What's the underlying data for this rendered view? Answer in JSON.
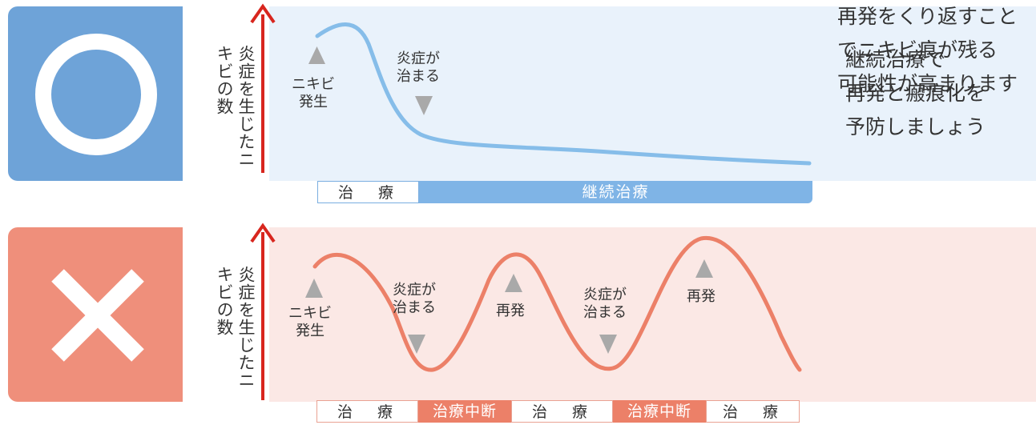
{
  "good": {
    "y_label": "炎症を生じたニキビの数",
    "notes": {
      "onset": [
        "ニキビ",
        "発生"
      ],
      "subside": [
        "炎症が",
        "治まる"
      ]
    },
    "timeline": {
      "treatment": "治　療",
      "continued": "継続治療"
    },
    "message": [
      "継続治療で",
      "再発と瘢痕化を",
      "予防しましょう"
    ],
    "colors": {
      "accent": "#6ea3d8",
      "curve": "#86bde9",
      "background": "#e9f2fb"
    }
  },
  "bad": {
    "y_label": "炎症を生じたニキビの数",
    "notes": {
      "onset": [
        "ニキビ",
        "発生"
      ],
      "subside": [
        "炎症が",
        "治まる"
      ],
      "relapse": "再発"
    },
    "timeline": {
      "treatment": "治　療",
      "interrupted": "治療中断"
    },
    "message": [
      "再発をくり返すこと",
      "でニキビ痕が残る",
      "可能性が高まります"
    ],
    "colors": {
      "accent": "#ef8f7b",
      "curve": "#ec8068",
      "background": "#fbe8e5"
    }
  },
  "icons": {
    "good": "circle-mark-icon",
    "bad": "cross-mark-icon",
    "axis": "up-arrow-icon"
  }
}
